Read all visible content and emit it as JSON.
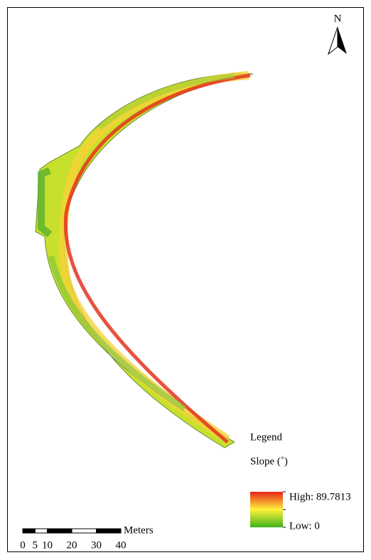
{
  "north_label": "N",
  "legend": {
    "title": "Legend",
    "field": "Slope (˚)",
    "high_label": "High: 89.7813",
    "low_label": "Low: 0"
  },
  "scale_bar": {
    "unit": "Meters",
    "ticks": [
      0,
      5,
      10,
      20,
      30,
      40
    ]
  }
}
